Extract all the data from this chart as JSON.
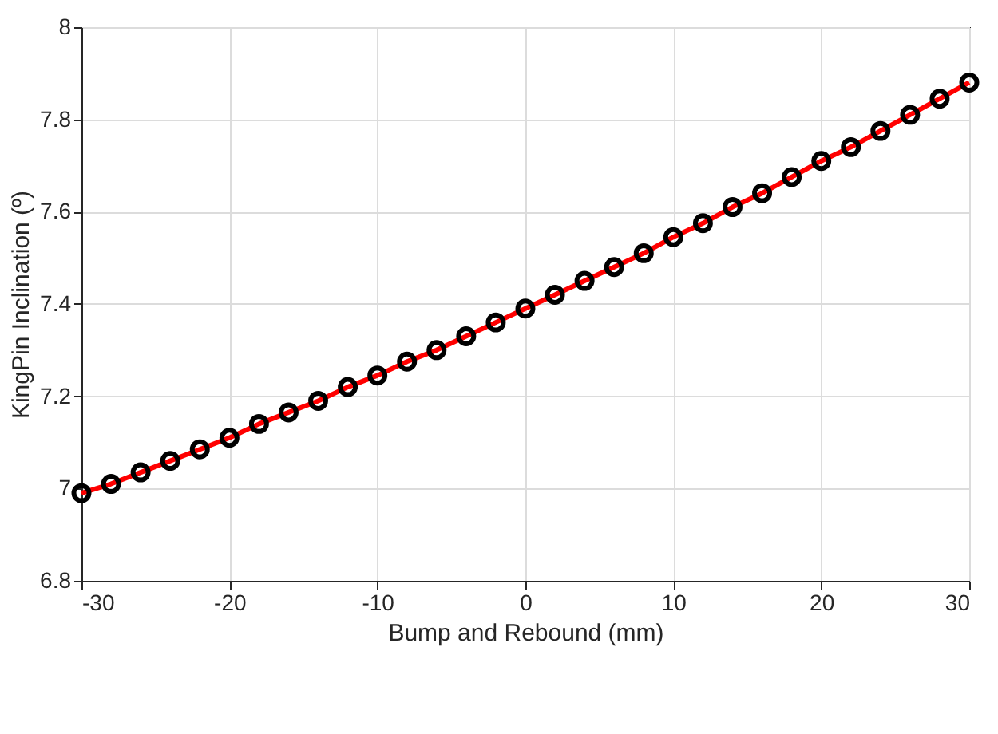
{
  "chart_data": {
    "type": "line",
    "xlabel": "Bump and Rebound (mm)",
    "ylabel": "KingPin Inclination (º)",
    "x": [
      -30,
      -28,
      -26,
      -24,
      -22,
      -20,
      -18,
      -16,
      -14,
      -12,
      -10,
      -8,
      -6,
      -4,
      -2,
      0,
      2,
      4,
      6,
      8,
      10,
      12,
      14,
      16,
      18,
      20,
      22,
      24,
      26,
      28,
      30
    ],
    "series": [
      {
        "color": "#ff0000",
        "line_style": "solid",
        "values": [
          6.99,
          7.01,
          7.035,
          7.06,
          7.085,
          7.11,
          7.14,
          7.165,
          7.19,
          7.22,
          7.245,
          7.275,
          7.3,
          7.33,
          7.36,
          7.39,
          7.42,
          7.45,
          7.48,
          7.51,
          7.545,
          7.575,
          7.61,
          7.64,
          7.675,
          7.71,
          7.74,
          7.775,
          7.81,
          7.845,
          7.88
        ]
      },
      {
        "type": "scatter",
        "color": "#000000",
        "marker": "circle",
        "values": [
          6.99,
          7.01,
          7.035,
          7.06,
          7.085,
          7.11,
          7.14,
          7.165,
          7.19,
          7.22,
          7.245,
          7.275,
          7.3,
          7.33,
          7.36,
          7.39,
          7.42,
          7.45,
          7.48,
          7.51,
          7.545,
          7.575,
          7.61,
          7.64,
          7.675,
          7.71,
          7.74,
          7.775,
          7.81,
          7.845,
          7.88
        ]
      }
    ],
    "xlim": [
      -30,
      30
    ],
    "xticks": [
      -30,
      -20,
      -10,
      0,
      10,
      20,
      30
    ],
    "ylim": [
      6.8,
      8
    ],
    "yticks": [
      6.8,
      7,
      7.2,
      7.4,
      7.6,
      7.8,
      8
    ],
    "grid": true
  }
}
